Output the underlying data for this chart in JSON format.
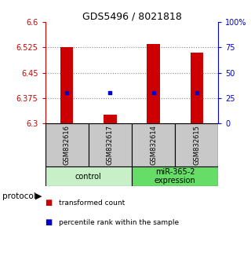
{
  "title": "GDS5496 / 8021818",
  "samples": [
    "GSM832616",
    "GSM832617",
    "GSM832614",
    "GSM832615"
  ],
  "group_labels": [
    "control",
    "miR-365-2\nexpression"
  ],
  "bar_values": [
    6.525,
    6.325,
    6.535,
    6.51
  ],
  "bar_bottom": 6.3,
  "percentile_pcts": [
    30,
    30,
    30,
    30
  ],
  "ylim_left": [
    6.3,
    6.6
  ],
  "ylim_right": [
    0,
    100
  ],
  "yticks_left": [
    6.3,
    6.375,
    6.45,
    6.525,
    6.6
  ],
  "ytick_labels_left": [
    "6.3",
    "6.375",
    "6.45",
    "6.525",
    "6.6"
  ],
  "yticks_right": [
    0,
    25,
    50,
    75,
    100
  ],
  "ytick_labels_right": [
    "0",
    "25",
    "50",
    "75",
    "100%"
  ],
  "bar_color": "#cc0000",
  "percentile_color": "#0000cc",
  "grid_color": "#888888",
  "left_axis_color": "#cc0000",
  "right_axis_color": "#0000cc",
  "sample_box_color": "#c8c8c8",
  "control_bg": "#c8f0c8",
  "expression_bg": "#66dd66",
  "legend_items": [
    "transformed count",
    "percentile rank within the sample"
  ],
  "protocol_label": "protocol"
}
